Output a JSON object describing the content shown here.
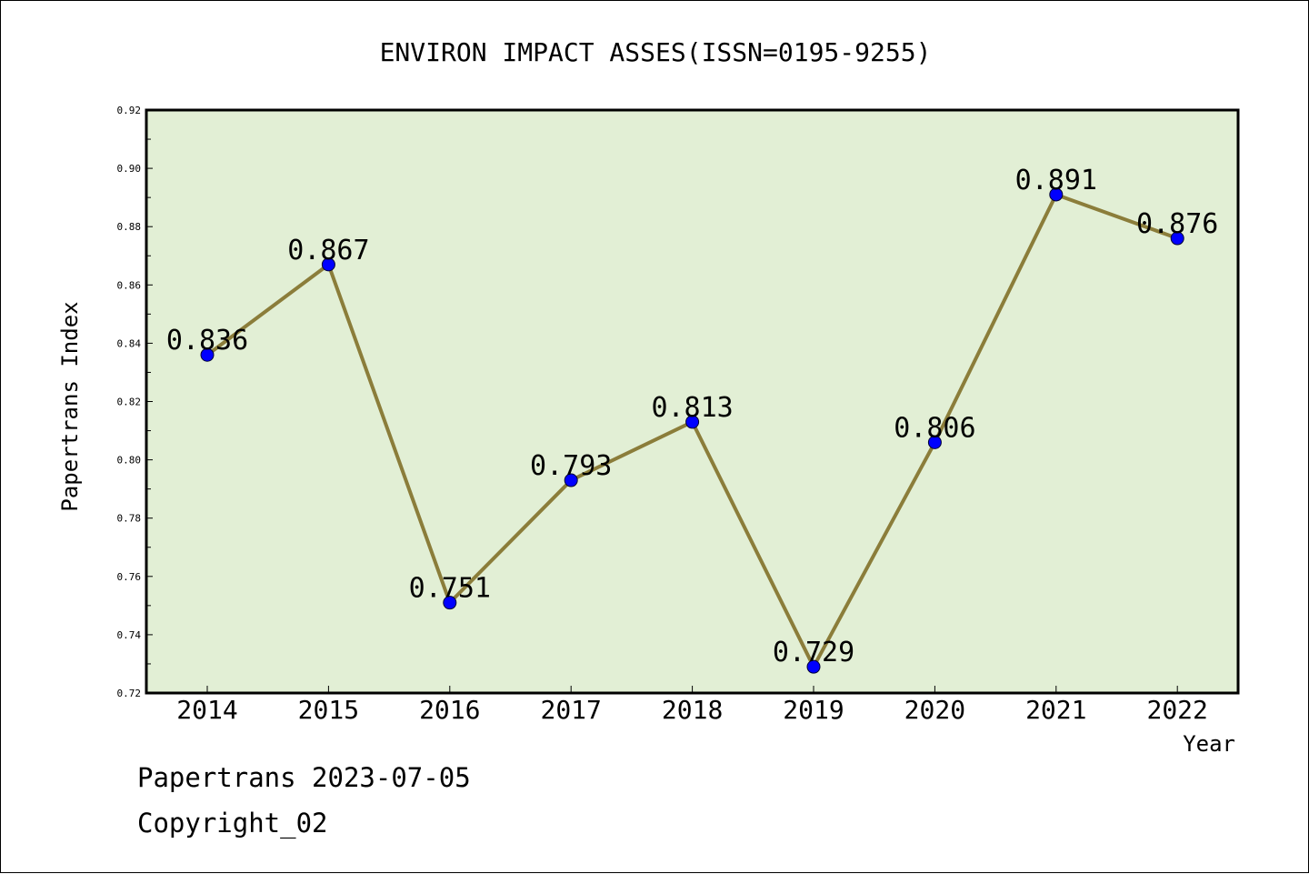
{
  "chart_data": {
    "type": "line",
    "title": "ENVIRON IMPACT ASSES(ISSN=0195-9255)",
    "xlabel": "Year",
    "ylabel": "Papertrans Index",
    "categories": [
      "2014",
      "2015",
      "2016",
      "2017",
      "2018",
      "2019",
      "2020",
      "2021",
      "2022"
    ],
    "series": [
      {
        "values": [
          0.836,
          0.867,
          0.751,
          0.793,
          0.813,
          0.729,
          0.806,
          0.891,
          0.876
        ],
        "labels": [
          "0.836",
          "0.867",
          "0.751",
          "0.793",
          "0.813",
          "0.729",
          "0.806",
          "0.891",
          "0.876"
        ],
        "line_color": "#8b7d3a",
        "marker_color": "#0000ff"
      }
    ],
    "ylim": [
      0.72,
      0.92
    ],
    "yticks": [
      "0.72",
      "0.74",
      "0.76",
      "0.78",
      "0.80",
      "0.82",
      "0.84",
      "0.86",
      "0.88",
      "0.90",
      "0.92"
    ],
    "plot_background": "#e2efd5",
    "grid": false,
    "legend": "none"
  },
  "footer": {
    "line1": "Papertrans 2023-07-05",
    "line2": "Copyright_02"
  }
}
